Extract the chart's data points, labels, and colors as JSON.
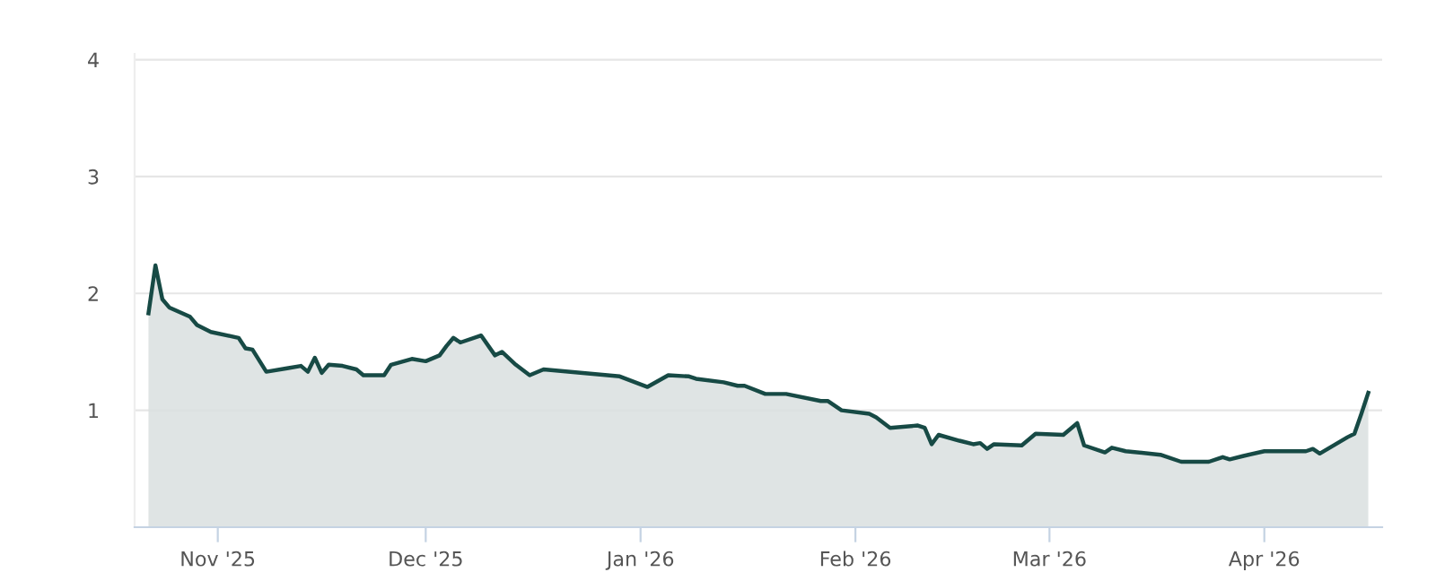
{
  "chart_data": {
    "type": "area",
    "x": [
      "2025-10-22",
      "2025-10-23",
      "2025-10-24",
      "2025-10-25",
      "2025-10-28",
      "2025-10-29",
      "2025-10-31",
      "2025-11-04",
      "2025-11-05",
      "2025-11-06",
      "2025-11-08",
      "2025-11-11",
      "2025-11-13",
      "2025-11-14",
      "2025-11-15",
      "2025-11-16",
      "2025-11-17",
      "2025-11-19",
      "2025-11-21",
      "2025-11-22",
      "2025-11-25",
      "2025-11-26",
      "2025-11-29",
      "2025-12-01",
      "2025-12-03",
      "2025-12-04",
      "2025-12-05",
      "2025-12-06",
      "2025-12-09",
      "2025-12-11",
      "2025-12-12",
      "2025-12-14",
      "2025-12-16",
      "2025-12-18",
      "2025-12-29",
      "2026-01-02",
      "2026-01-05",
      "2026-01-08",
      "2026-01-09",
      "2026-01-13",
      "2026-01-15",
      "2026-01-16",
      "2026-01-19",
      "2026-01-22",
      "2026-01-27",
      "2026-01-28",
      "2026-01-30",
      "2026-02-03",
      "2026-02-04",
      "2026-02-06",
      "2026-02-10",
      "2026-02-11",
      "2026-02-12",
      "2026-02-13",
      "2026-02-16",
      "2026-02-18",
      "2026-02-19",
      "2026-02-20",
      "2026-02-21",
      "2026-02-25",
      "2026-02-27",
      "2026-03-03",
      "2026-03-05",
      "2026-03-06",
      "2026-03-09",
      "2026-03-10",
      "2026-03-12",
      "2026-03-17",
      "2026-03-20",
      "2026-03-24",
      "2026-03-26",
      "2026-03-27",
      "2026-03-29",
      "2026-04-01",
      "2026-04-07",
      "2026-04-08",
      "2026-04-09",
      "2026-04-13",
      "2026-04-14",
      "2026-04-15",
      "2026-04-16"
    ],
    "series": [
      {
        "color": "#174a45",
        "values": [
          1.83,
          2.24,
          1.95,
          1.88,
          1.8,
          1.73,
          1.67,
          1.62,
          1.53,
          1.52,
          1.33,
          1.36,
          1.38,
          1.33,
          1.45,
          1.32,
          1.39,
          1.38,
          1.35,
          1.3,
          1.3,
          1.39,
          1.44,
          1.42,
          1.47,
          1.55,
          1.62,
          1.58,
          1.64,
          1.47,
          1.5,
          1.39,
          1.3,
          1.35,
          1.29,
          1.2,
          1.3,
          1.29,
          1.27,
          1.24,
          1.21,
          1.21,
          1.14,
          1.14,
          1.08,
          1.08,
          1.0,
          0.97,
          0.94,
          0.85,
          0.87,
          0.85,
          0.71,
          0.79,
          0.74,
          0.71,
          0.72,
          0.67,
          0.71,
          0.7,
          0.8,
          0.79,
          0.89,
          0.7,
          0.64,
          0.68,
          0.65,
          0.62,
          0.56,
          0.56,
          0.6,
          0.58,
          0.61,
          0.65,
          0.65,
          0.67,
          0.63,
          0.77,
          0.8,
          0.97,
          1.15
        ]
      }
    ],
    "xlim": [
      "2025-10-20",
      "2026-04-18"
    ],
    "xticks": [
      {
        "value": "2025-11-01",
        "label": "Nov '25"
      },
      {
        "value": "2025-12-01",
        "label": "Dec '25"
      },
      {
        "value": "2026-01-01",
        "label": "Jan '26"
      },
      {
        "value": "2026-02-01",
        "label": "Feb '26"
      },
      {
        "value": "2026-03-01",
        "label": "Mar '26"
      },
      {
        "value": "2026-04-01",
        "label": "Apr '26"
      }
    ],
    "ylim": [
      0,
      4.05
    ],
    "yticks": [
      1,
      2,
      3,
      4
    ],
    "grid": "y"
  }
}
